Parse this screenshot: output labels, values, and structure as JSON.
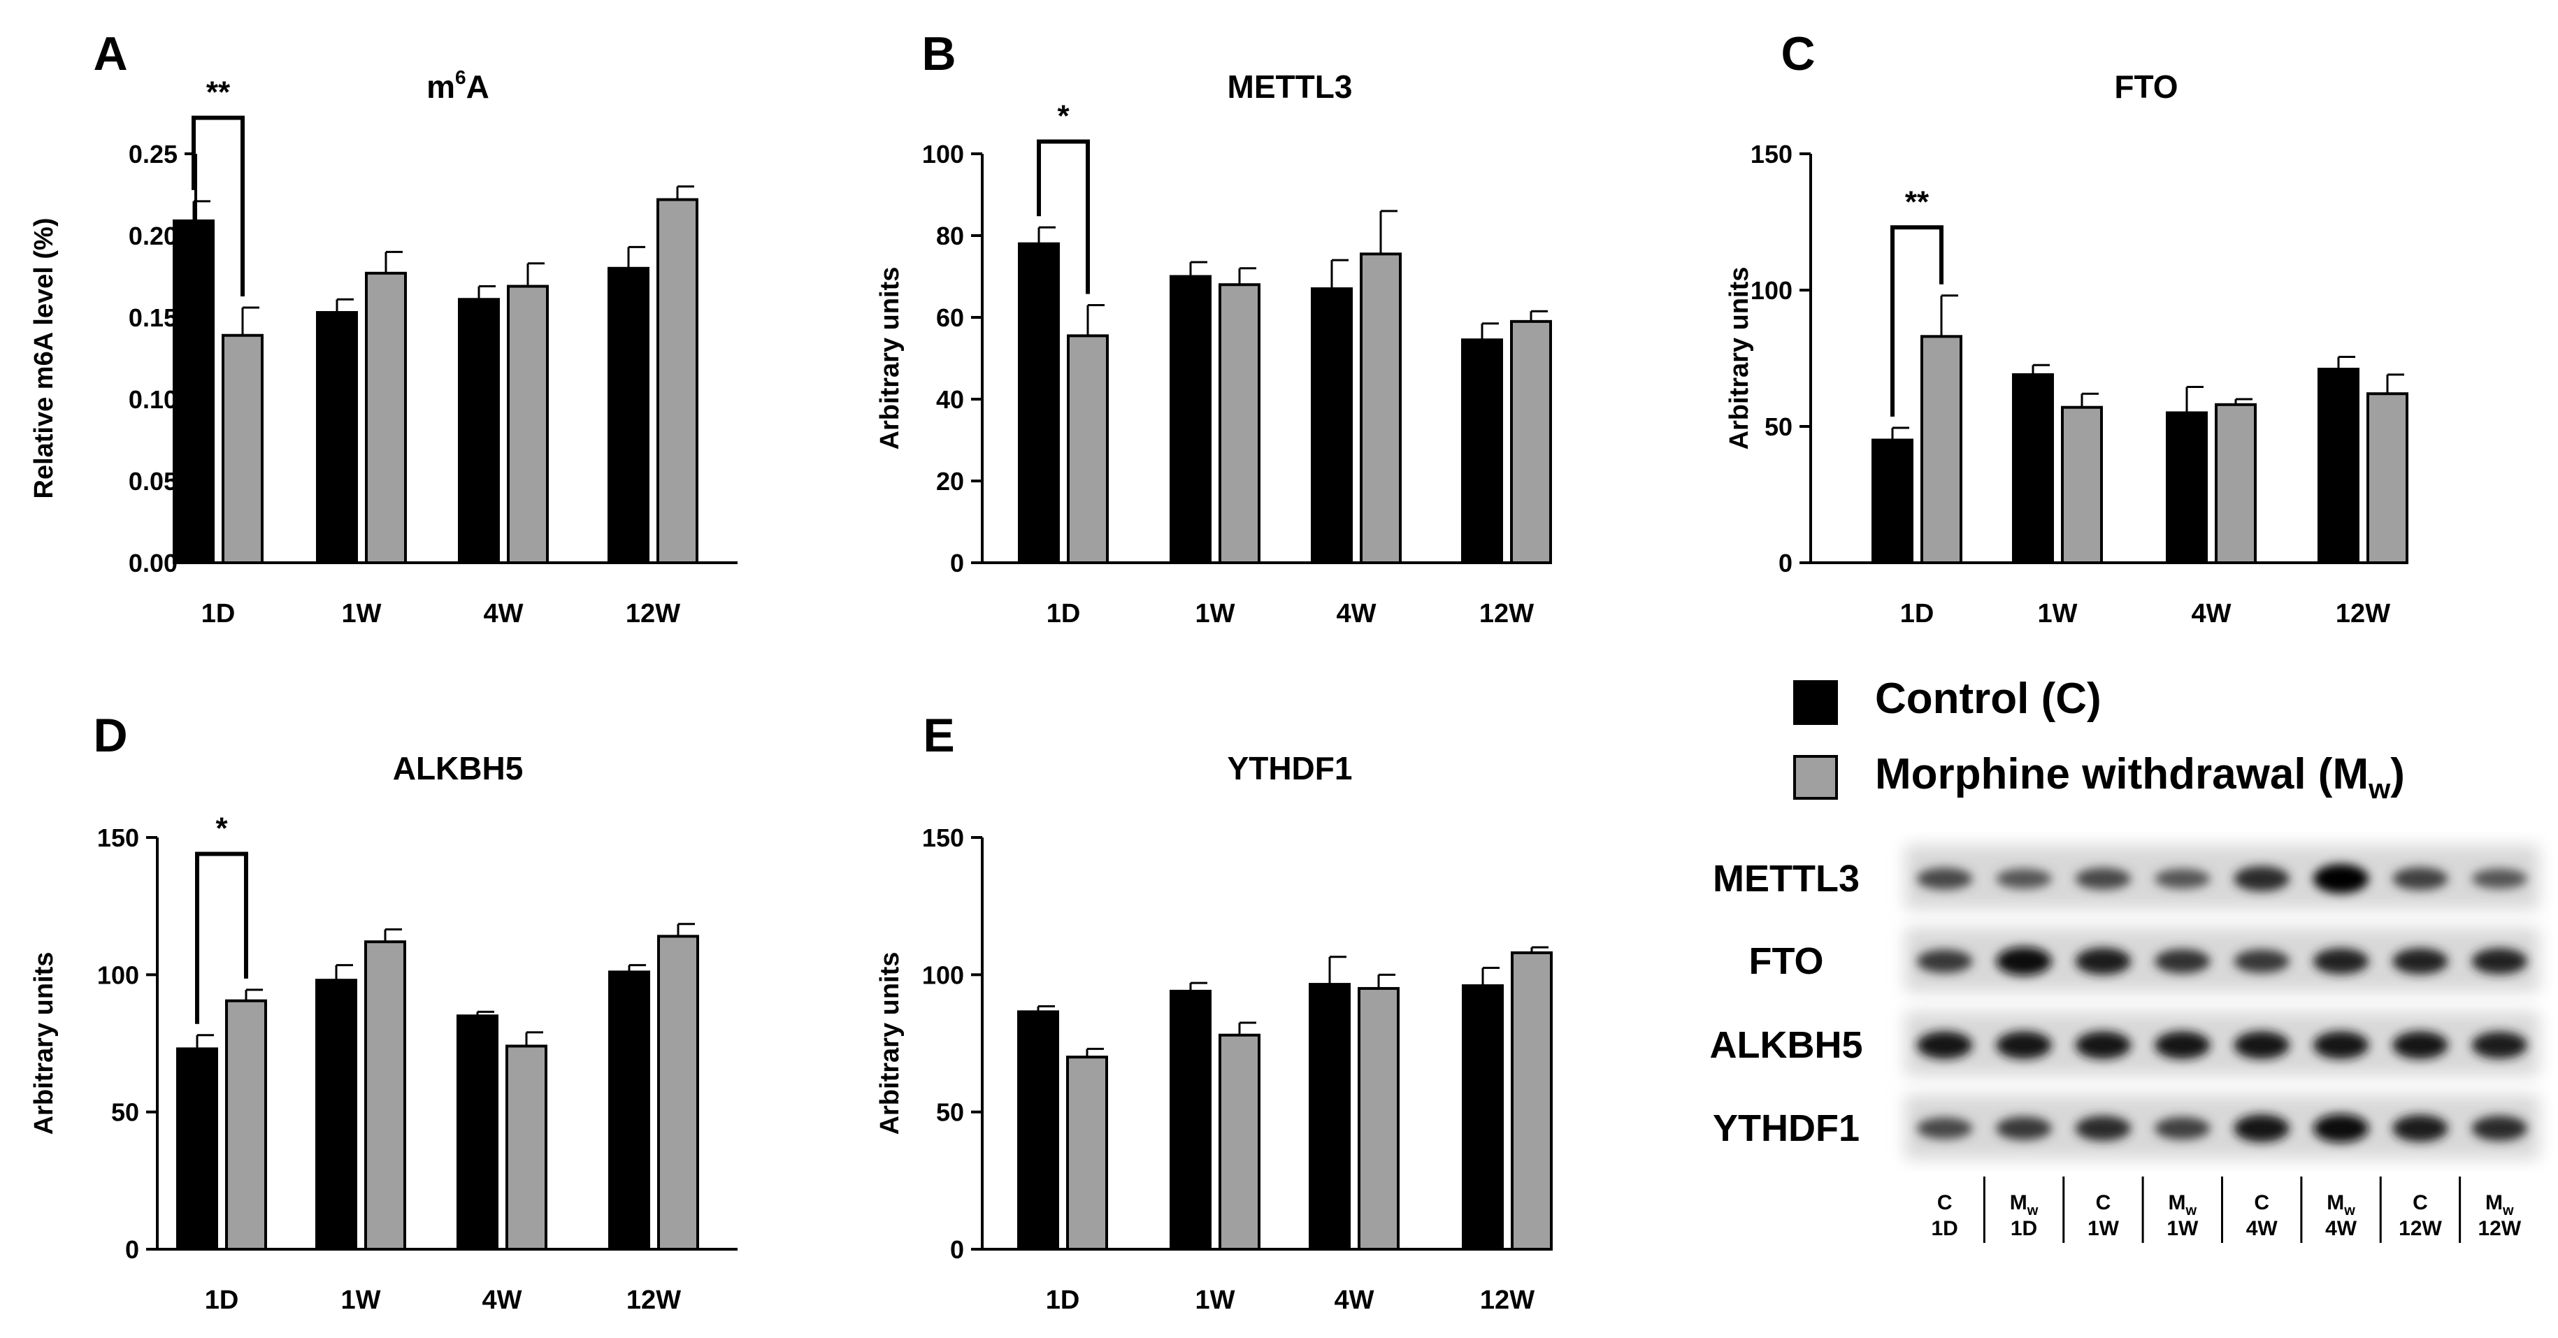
{
  "colors": {
    "control": "#000000",
    "morphine": "#a0a0a0",
    "axis": "#000000",
    "background": "#ffffff"
  },
  "legend": {
    "control_label": "Control (C)",
    "morphine_label_main": "Morphine withdrawal (M",
    "morphine_label_sub": "w",
    "morphine_label_end": ")"
  },
  "chart_data": [
    {
      "id": "A",
      "panel_letter": "A",
      "type": "bar",
      "title": "m",
      "title_superscript": "6",
      "title_suffix": "A",
      "xlabel": "",
      "ylabel": "Relative m6A level (%)",
      "categories": [
        "1D",
        "1W",
        "4W",
        "12W"
      ],
      "ylim": [
        0,
        0.25
      ],
      "yticks": [
        0.0,
        0.05,
        0.1,
        0.15,
        0.2,
        0.25
      ],
      "ytick_labels": [
        "0.00",
        "0.05",
        "0.10",
        "0.15",
        "0.20",
        "0.25"
      ],
      "series": [
        {
          "name": "Control (C)",
          "values": [
            0.209,
            0.153,
            0.161,
            0.18
          ],
          "errors": [
            0.012,
            0.008,
            0.008,
            0.013
          ]
        },
        {
          "name": "Morphine withdrawal (Mw)",
          "values": [
            0.139,
            0.177,
            0.169,
            0.222
          ],
          "errors": [
            0.017,
            0.013,
            0.014,
            0.008
          ]
        }
      ],
      "significance": {
        "group_index": 0,
        "label": "**",
        "bracket_top": 0.272
      }
    },
    {
      "id": "B",
      "panel_letter": "B",
      "type": "bar",
      "title": "METTL3",
      "title_superscript": "",
      "title_suffix": "",
      "xlabel": "",
      "ylabel": "Arbitrary units",
      "categories": [
        "1D",
        "1W",
        "4W",
        "12W"
      ],
      "ylim": [
        0,
        100
      ],
      "yticks": [
        0,
        20,
        40,
        60,
        80,
        100
      ],
      "ytick_labels": [
        "0",
        "20",
        "40",
        "60",
        "80",
        "100"
      ],
      "series": [
        {
          "name": "Control (C)",
          "values": [
            78,
            70,
            67,
            54.5
          ],
          "errors": [
            4,
            3.5,
            7,
            4
          ]
        },
        {
          "name": "Morphine withdrawal (Mw)",
          "values": [
            55.5,
            68,
            75.5,
            59
          ],
          "errors": [
            7.5,
            4,
            10.5,
            2.5
          ]
        }
      ],
      "significance": {
        "group_index": 0,
        "label": "*",
        "bracket_top": 103
      }
    },
    {
      "id": "C",
      "panel_letter": "C",
      "type": "bar",
      "title": "FTO",
      "title_superscript": "",
      "title_suffix": "",
      "xlabel": "",
      "ylabel": "Arbitrary units",
      "categories": [
        "1D",
        "1W",
        "4W",
        "12W"
      ],
      "ylim": [
        0,
        150
      ],
      "yticks": [
        0,
        50,
        100,
        150
      ],
      "ytick_labels": [
        "0",
        "50",
        "100",
        "150"
      ],
      "series": [
        {
          "name": "Control (C)",
          "values": [
            45,
            69,
            55,
            71
          ],
          "errors": [
            4.5,
            3.5,
            9.5,
            4.5
          ]
        },
        {
          "name": "Morphine withdrawal (Mw)",
          "values": [
            83,
            57,
            58,
            62
          ],
          "errors": [
            15,
            5,
            2,
            7
          ]
        }
      ],
      "significance": {
        "group_index": 0,
        "label": "**",
        "bracket_top": 123
      }
    },
    {
      "id": "D",
      "panel_letter": "D",
      "type": "bar",
      "title": "ALKBH5",
      "title_superscript": "",
      "title_suffix": "",
      "xlabel": "",
      "ylabel": "Arbitrary units",
      "categories": [
        "1D",
        "1W",
        "4W",
        "12W"
      ],
      "ylim": [
        0,
        150
      ],
      "yticks": [
        0,
        50,
        100,
        150
      ],
      "ytick_labels": [
        "0",
        "50",
        "100",
        "150"
      ],
      "series": [
        {
          "name": "Control (C)",
          "values": [
            73,
            98,
            85,
            101
          ],
          "errors": [
            5,
            5.5,
            1.5,
            2.5
          ]
        },
        {
          "name": "Morphine withdrawal (Mw)",
          "values": [
            90.5,
            112,
            74,
            114
          ],
          "errors": [
            4,
            4.5,
            5,
            4.5
          ]
        }
      ],
      "significance": {
        "group_index": 0,
        "label": "*",
        "bracket_top": 144
      }
    },
    {
      "id": "E",
      "panel_letter": "E",
      "type": "bar",
      "title": "YTHDF1",
      "title_superscript": "",
      "title_suffix": "",
      "xlabel": "",
      "ylabel": "Arbitrary units",
      "categories": [
        "1D",
        "1W",
        "4W",
        "12W"
      ],
      "ylim": [
        0,
        150
      ],
      "yticks": [
        0,
        50,
        100,
        150
      ],
      "ytick_labels": [
        "0",
        "50",
        "100",
        "150"
      ],
      "series": [
        {
          "name": "Control (C)",
          "values": [
            86.5,
            94,
            96.5,
            96
          ],
          "errors": [
            2,
            3,
            10,
            6.5
          ]
        },
        {
          "name": "Morphine withdrawal (Mw)",
          "values": [
            70,
            78,
            95,
            108
          ],
          "errors": [
            3,
            4.5,
            5,
            2
          ]
        }
      ],
      "significance": null
    }
  ],
  "western_blot": {
    "rows": [
      {
        "label": "METTL3",
        "intensities": [
          0.55,
          0.45,
          0.55,
          0.45,
          0.75,
          1.0,
          0.6,
          0.45
        ]
      },
      {
        "label": "FTO",
        "intensities": [
          0.65,
          0.95,
          0.85,
          0.7,
          0.65,
          0.8,
          0.8,
          0.8
        ]
      },
      {
        "label": "ALKBH5",
        "intensities": [
          0.9,
          0.9,
          0.9,
          0.9,
          0.9,
          0.9,
          0.9,
          0.85
        ]
      },
      {
        "label": "YTHDF1",
        "intensities": [
          0.55,
          0.65,
          0.75,
          0.6,
          0.9,
          0.95,
          0.85,
          0.75
        ]
      }
    ],
    "lanes": [
      {
        "top": "C",
        "top_sub": "",
        "bottom": "1D"
      },
      {
        "top": "M",
        "top_sub": "w",
        "bottom": "1D"
      },
      {
        "top": "C",
        "top_sub": "",
        "bottom": "1W"
      },
      {
        "top": "M",
        "top_sub": "w",
        "bottom": "1W"
      },
      {
        "top": "C",
        "top_sub": "",
        "bottom": "4W"
      },
      {
        "top": "M",
        "top_sub": "w",
        "bottom": "4W"
      },
      {
        "top": "C",
        "top_sub": "",
        "bottom": "12W"
      },
      {
        "top": "M",
        "top_sub": "w",
        "bottom": "12W"
      }
    ]
  }
}
